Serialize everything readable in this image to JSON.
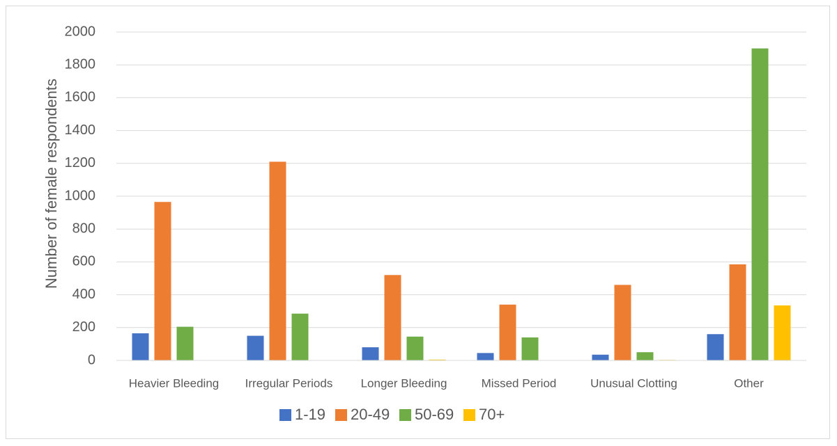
{
  "chart_data": {
    "type": "bar",
    "title": "",
    "xlabel": "",
    "ylabel": "Number of female respondents",
    "ylim": [
      0,
      2000
    ],
    "yticks": [
      0,
      200,
      400,
      600,
      800,
      1000,
      1200,
      1400,
      1600,
      1800,
      2000
    ],
    "grid": true,
    "legend_position": "bottom",
    "categories": [
      "Heavier Bleeding",
      "Irregular Periods",
      "Longer Bleeding",
      "Missed Period",
      "Unusual Clotting",
      "Other"
    ],
    "series": [
      {
        "name": "1-19",
        "color": "#4472c4",
        "values": [
          165,
          150,
          80,
          45,
          35,
          160
        ]
      },
      {
        "name": "20-49",
        "color": "#ed7d31",
        "values": [
          965,
          1210,
          520,
          340,
          460,
          585
        ]
      },
      {
        "name": "50-69",
        "color": "#70ad47",
        "values": [
          205,
          285,
          145,
          140,
          50,
          1900
        ]
      },
      {
        "name": "70+",
        "color": "#ffc000",
        "values": [
          0,
          0,
          5,
          0,
          3,
          335
        ]
      }
    ]
  }
}
